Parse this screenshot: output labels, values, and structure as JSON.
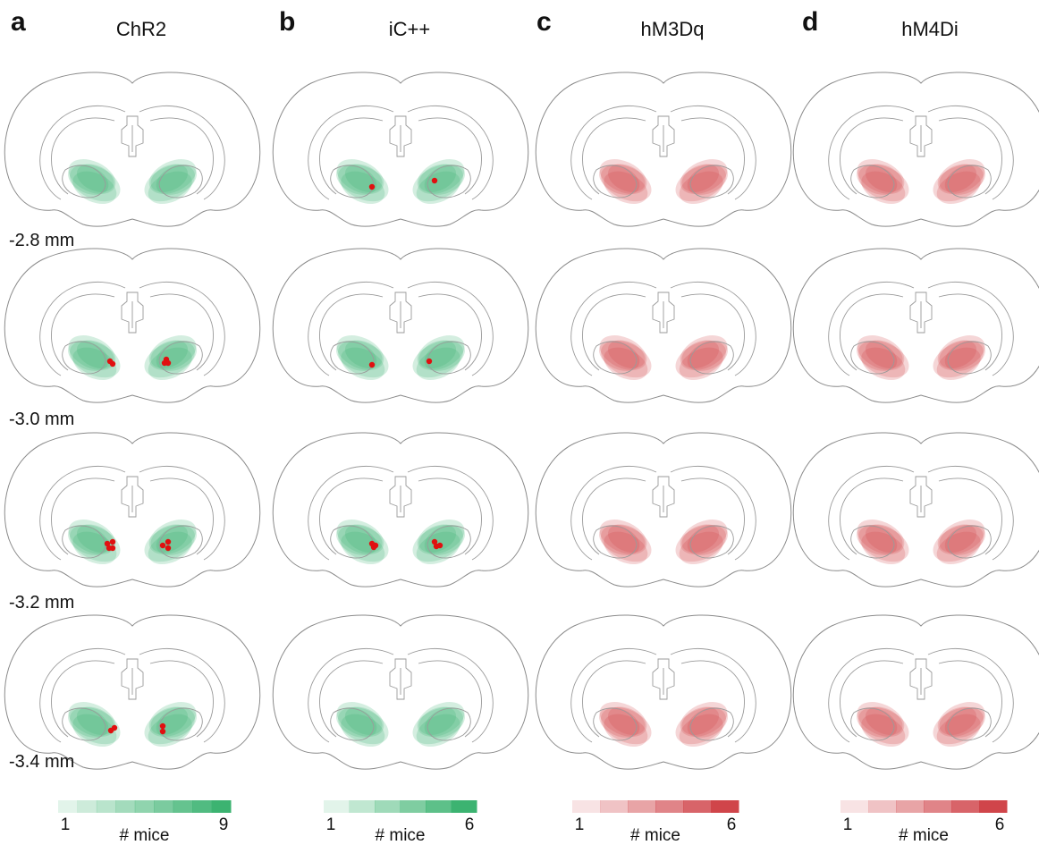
{
  "panels": [
    {
      "letter": "a",
      "title": "ChR2",
      "color": "#3cb371",
      "colorbar": {
        "min": 1,
        "max": 9,
        "label": "# mice"
      }
    },
    {
      "letter": "b",
      "title": "iC++",
      "color": "#3cb371",
      "colorbar": {
        "min": 1,
        "max": 6,
        "label": "# mice"
      }
    },
    {
      "letter": "c",
      "title": "hM3Dq",
      "color": "#d0454a",
      "colorbar": {
        "min": 1,
        "max": 6,
        "label": "# mice"
      }
    },
    {
      "letter": "d",
      "title": "hM4Di",
      "color": "#d0454a",
      "colorbar": {
        "min": 1,
        "max": 6,
        "label": "# mice"
      }
    }
  ],
  "depths": [
    "-2.8 mm",
    "-3.0 mm",
    "-3.2 mm",
    "-3.4 mm"
  ]
}
